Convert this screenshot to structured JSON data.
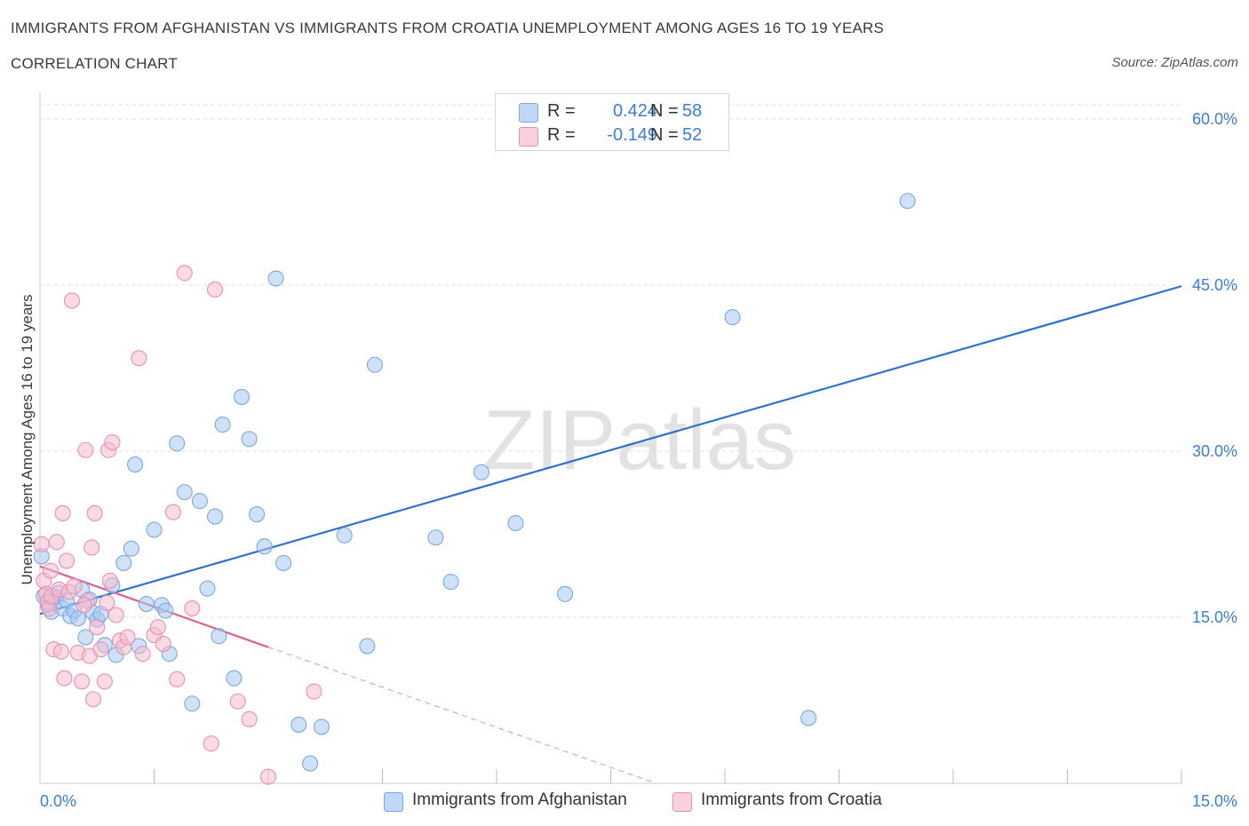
{
  "chart_data": {
    "type": "scatter",
    "title": "IMMIGRANTS FROM AFGHANISTAN VS IMMIGRANTS FROM CROATIA UNEMPLOYMENT AMONG AGES 16 TO 19 YEARS",
    "subtitle": "CORRELATION CHART",
    "source": "Source: ZipAtlas.com",
    "xlabel": "",
    "ylabel": "Unemployment Among Ages 16 to 19 years",
    "xlim": [
      0,
      15
    ],
    "ylim": [
      0,
      60
    ],
    "x_tick_labels": [
      "0.0%",
      "15.0%"
    ],
    "y_tick_labels": [
      "15.0%",
      "30.0%",
      "45.0%",
      "60.0%"
    ],
    "y_ticks": [
      15,
      30,
      45,
      60
    ],
    "watermark": "ZIPatlas",
    "legend": {
      "rows": [
        {
          "r_label": "R =",
          "r_value": "0.424",
          "n_label": "N =",
          "n_value": "58"
        },
        {
          "r_label": "R =",
          "r_value": "-0.149",
          "n_label": "N =",
          "n_value": "52"
        }
      ]
    },
    "series": [
      {
        "name": "Immigrants from Afghanistan",
        "color": "#a8c8f0",
        "stroke": "#7aaae0",
        "trend_color": "#2f72cc",
        "trend": {
          "x": [
            0,
            15
          ],
          "y": [
            15.3,
            44.9
          ]
        },
        "points": [
          [
            0.02,
            20.5
          ],
          [
            0.05,
            16.9
          ],
          [
            0.1,
            16.2
          ],
          [
            0.15,
            15.5
          ],
          [
            0.2,
            16.8
          ],
          [
            0.25,
            17.2
          ],
          [
            0.3,
            15.8
          ],
          [
            0.35,
            16.5
          ],
          [
            0.4,
            15.1
          ],
          [
            0.45,
            15.6
          ],
          [
            0.5,
            14.9
          ],
          [
            0.55,
            17.5
          ],
          [
            0.6,
            13.2
          ],
          [
            0.65,
            16.6
          ],
          [
            0.7,
            15.4
          ],
          [
            0.75,
            14.8
          ],
          [
            0.8,
            15.3
          ],
          [
            0.85,
            12.5
          ],
          [
            0.95,
            17.9
          ],
          [
            1.0,
            11.6
          ],
          [
            1.1,
            19.9
          ],
          [
            1.2,
            21.2
          ],
          [
            1.25,
            28.8
          ],
          [
            1.3,
            12.4
          ],
          [
            1.4,
            16.2
          ],
          [
            1.5,
            22.9
          ],
          [
            1.6,
            16.1
          ],
          [
            1.65,
            15.6
          ],
          [
            1.7,
            11.7
          ],
          [
            1.8,
            30.7
          ],
          [
            1.9,
            26.3
          ],
          [
            2.0,
            7.2
          ],
          [
            2.1,
            25.5
          ],
          [
            2.2,
            17.6
          ],
          [
            2.3,
            24.1
          ],
          [
            2.35,
            13.3
          ],
          [
            2.4,
            32.4
          ],
          [
            2.55,
            9.5
          ],
          [
            2.65,
            34.9
          ],
          [
            2.75,
            31.1
          ],
          [
            2.85,
            24.3
          ],
          [
            2.95,
            21.4
          ],
          [
            3.1,
            45.6
          ],
          [
            3.2,
            19.9
          ],
          [
            3.4,
            5.3
          ],
          [
            3.55,
            1.8
          ],
          [
            3.7,
            5.1
          ],
          [
            4.0,
            22.4
          ],
          [
            4.3,
            12.4
          ],
          [
            4.4,
            37.8
          ],
          [
            5.2,
            22.2
          ],
          [
            5.4,
            18.2
          ],
          [
            5.8,
            28.1
          ],
          [
            6.25,
            23.5
          ],
          [
            6.9,
            17.1
          ],
          [
            9.1,
            42.1
          ],
          [
            10.1,
            5.9
          ],
          [
            11.4,
            52.6
          ]
        ]
      },
      {
        "name": "Immigrants from Croatia",
        "color": "#f6bcd0",
        "stroke": "#e890b0",
        "trend_color": "#e0608e",
        "trend": {
          "x": [
            0,
            3.0
          ],
          "y": [
            19.6,
            12.3
          ]
        },
        "trend_ext": {
          "x": [
            3.0,
            8.1
          ],
          "y": [
            12.3,
            0
          ]
        },
        "points": [
          [
            0.02,
            21.6
          ],
          [
            0.05,
            18.3
          ],
          [
            0.08,
            17.1
          ],
          [
            0.1,
            16.4
          ],
          [
            0.12,
            15.8
          ],
          [
            0.15,
            16.9
          ],
          [
            0.18,
            12.1
          ],
          [
            0.22,
            21.8
          ],
          [
            0.25,
            17.5
          ],
          [
            0.28,
            11.9
          ],
          [
            0.3,
            24.4
          ],
          [
            0.32,
            9.5
          ],
          [
            0.35,
            20.1
          ],
          [
            0.38,
            17.3
          ],
          [
            0.42,
            43.6
          ],
          [
            0.45,
            17.8
          ],
          [
            0.5,
            11.8
          ],
          [
            0.55,
            9.2
          ],
          [
            0.6,
            30.1
          ],
          [
            0.62,
            16.5
          ],
          [
            0.65,
            11.5
          ],
          [
            0.68,
            21.3
          ],
          [
            0.7,
            7.6
          ],
          [
            0.72,
            24.4
          ],
          [
            0.75,
            14.1
          ],
          [
            0.8,
            12.1
          ],
          [
            0.85,
            9.2
          ],
          [
            0.88,
            16.3
          ],
          [
            0.9,
            30.1
          ],
          [
            0.92,
            18.3
          ],
          [
            0.95,
            30.8
          ],
          [
            1.0,
            15.2
          ],
          [
            1.05,
            12.9
          ],
          [
            1.1,
            12.3
          ],
          [
            1.15,
            13.2
          ],
          [
            1.3,
            38.4
          ],
          [
            1.35,
            11.7
          ],
          [
            1.5,
            13.4
          ],
          [
            1.55,
            14.1
          ],
          [
            1.75,
            24.5
          ],
          [
            1.8,
            9.4
          ],
          [
            1.9,
            46.1
          ],
          [
            2.0,
            15.8
          ],
          [
            2.25,
            3.6
          ],
          [
            2.3,
            44.6
          ],
          [
            2.6,
            7.4
          ],
          [
            2.75,
            5.8
          ],
          [
            3.0,
            0.6
          ],
          [
            3.6,
            8.3
          ],
          [
            0.14,
            19.2
          ],
          [
            0.58,
            16.1
          ],
          [
            1.62,
            12.6
          ]
        ]
      }
    ]
  }
}
